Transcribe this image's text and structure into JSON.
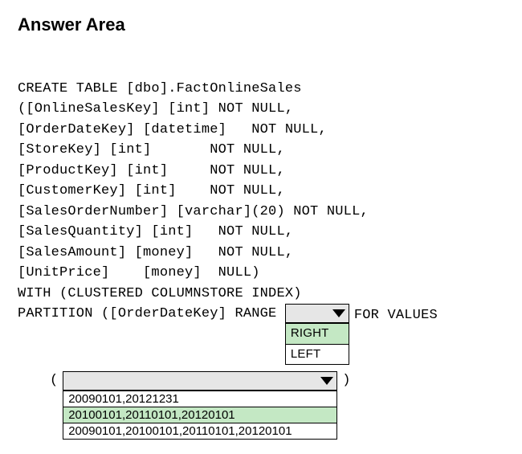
{
  "title": "Answer Area",
  "code": {
    "l1": "CREATE TABLE [dbo].FactOnlineSales",
    "l2": "([OnlineSalesKey] [int] NOT NULL,",
    "l3": "[OrderDateKey] [datetime]   NOT NULL,",
    "l4": "[StoreKey] [int]       NOT NULL,",
    "l5": "[ProductKey] [int]     NOT NULL,",
    "l6": "[CustomerKey] [int]    NOT NULL,",
    "l7": "[SalesOrderNumber] [varchar](20) NOT NULL,",
    "l8": "[SalesQuantity] [int]   NOT NULL,",
    "l9": "[SalesAmount] [money]   NOT NULL,",
    "l10": "[UnitPrice]    [money]  NULL)",
    "l11": "WITH (CLUSTERED COLUMNSTORE INDEX)",
    "l12_pre": "PARTITION ([OrderDateKey] RANGE ",
    "l12_post": "FOR VALUES"
  },
  "dropdown_range": {
    "options": [
      "RIGHT",
      "LEFT"
    ],
    "selected_index": 0,
    "selected_bg": "#c4e8c4",
    "header_bg": "#e6e6e6"
  },
  "paren_open": "(",
  "paren_close": ")",
  "dropdown_values": {
    "options": [
      "20090101,20121231",
      "20100101,20110101,20120101",
      "20090101,20100101,20110101,20120101"
    ],
    "selected_index": 1,
    "selected_bg": "#c4e8c4",
    "header_bg": "#e6e6e6"
  }
}
